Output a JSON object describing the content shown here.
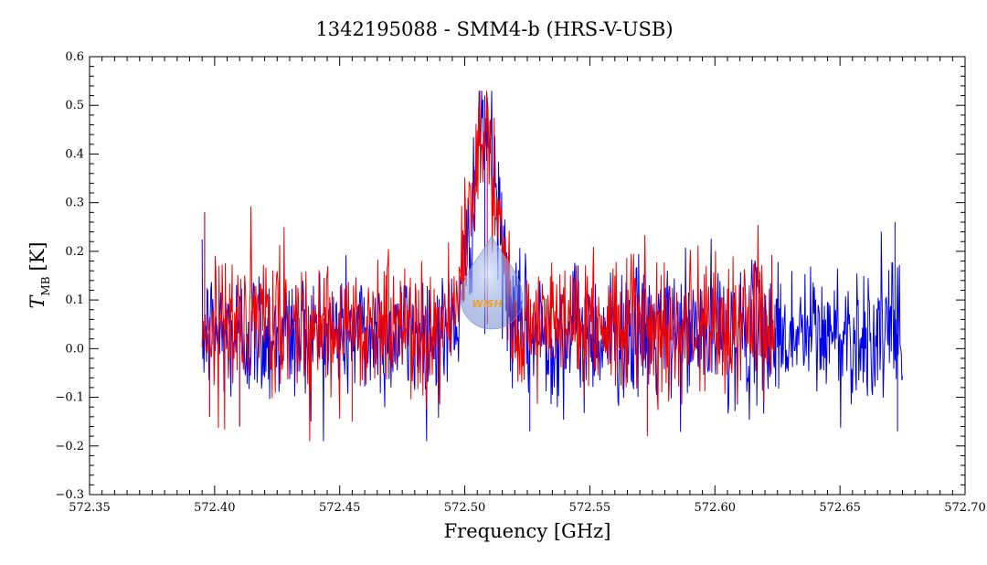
{
  "chart_data": {
    "type": "line",
    "title": "1342195088 - SMM4-b (HRS-V-USB)",
    "xlabel": "Frequency [GHz]",
    "ylabel": {
      "symbol": "T",
      "subscript": "MB",
      "unit": "[K]"
    },
    "xlim": [
      572.35,
      572.7
    ],
    "ylim": [
      -0.3,
      0.6
    ],
    "x_ticks": [
      572.35,
      572.4,
      572.45,
      572.5,
      572.55,
      572.6,
      572.65,
      572.7
    ],
    "x_tick_labels": [
      "572.35",
      "572.40",
      "572.45",
      "572.50",
      "572.55",
      "572.60",
      "572.65",
      "572.70"
    ],
    "y_ticks": [
      -0.3,
      -0.2,
      -0.1,
      0.0,
      0.1,
      0.2,
      0.3,
      0.4,
      0.5,
      0.6
    ],
    "y_tick_labels": [
      "−0.3",
      "−0.2",
      "−0.1",
      "0.0",
      "0.1",
      "0.2",
      "0.3",
      "0.4",
      "0.5",
      "0.6"
    ],
    "grid": false,
    "logo_text": "WISH",
    "series": [
      {
        "color": "#0000ee",
        "x_range": [
          572.395,
          572.675
        ],
        "noise_rms": 0.07,
        "baseline": 0.03,
        "line_profile": {
          "center": 572.508,
          "peak": 0.42,
          "fwhm": 0.012
        },
        "notable_points": [
          {
            "x": 572.396,
            "y": 0.28
          },
          {
            "x": 572.398,
            "y": -0.14
          },
          {
            "x": 572.41,
            "y": -0.16
          },
          {
            "x": 572.508,
            "y": 0.52
          },
          {
            "x": 572.526,
            "y": -0.17
          },
          {
            "x": 572.573,
            "y": -0.17
          },
          {
            "x": 572.672,
            "y": 0.26
          },
          {
            "x": 572.673,
            "y": -0.17
          }
        ]
      },
      {
        "color": "#ee0000",
        "x_range": [
          572.395,
          572.624
        ],
        "noise_rms": 0.07,
        "baseline": 0.05,
        "line_profile": {
          "center": 572.508,
          "peak": 0.42,
          "fwhm": 0.012
        },
        "notable_points": [
          {
            "x": 572.396,
            "y": 0.28
          },
          {
            "x": 572.398,
            "y": -0.14
          },
          {
            "x": 572.41,
            "y": -0.16
          },
          {
            "x": 572.455,
            "y": -0.15
          },
          {
            "x": 572.509,
            "y": 0.5
          },
          {
            "x": 572.573,
            "y": -0.18
          }
        ]
      }
    ]
  }
}
